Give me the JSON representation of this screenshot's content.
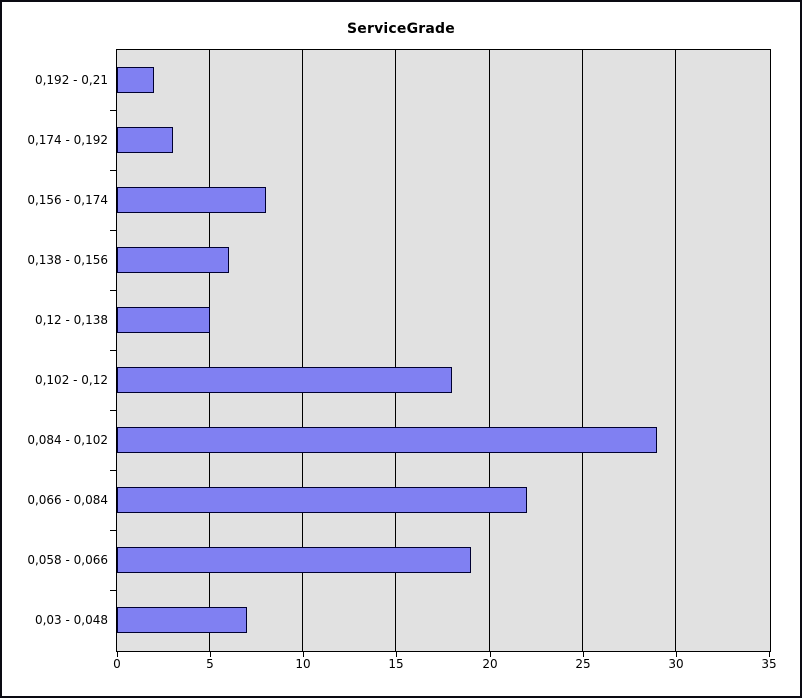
{
  "chart_data": {
    "type": "bar",
    "orientation": "horizontal",
    "title": "ServiceGrade",
    "categories": [
      "0,192 - 0,21",
      "0,174 - 0,192",
      "0,156 - 0,174",
      "0,138 - 0,156",
      "0,12 - 0,138",
      "0,102 - 0,12",
      "0,084 - 0,102",
      "0,066 - 0,084",
      "0,058 - 0,066",
      "0,03 - 0,048"
    ],
    "values": [
      2,
      3,
      8,
      6,
      5,
      18,
      29,
      22,
      19,
      7
    ],
    "xlabel": "",
    "ylabel": "",
    "xlim": [
      0,
      35
    ],
    "xticks": [
      0,
      5,
      10,
      15,
      20,
      25,
      30,
      35
    ],
    "grid": true,
    "legend": false,
    "colors": {
      "bar_fill": "#8080F2",
      "bar_border": "#000030",
      "plot_background": "#E1E1E1",
      "gridline": "#000000",
      "frame_border": "#0A0A12",
      "text": "#000000",
      "page_background": "#FFFFFF"
    }
  }
}
